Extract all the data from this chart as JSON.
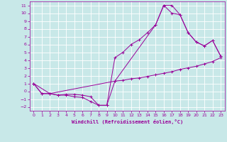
{
  "xlabel": "Windchill (Refroidissement éolien,°C)",
  "bg_color": "#c8e8e8",
  "grid_color": "#ffffff",
  "line_color": "#990099",
  "xlim": [
    -0.5,
    23.5
  ],
  "ylim": [
    -2.5,
    11.5
  ],
  "xticks": [
    0,
    1,
    2,
    3,
    4,
    5,
    6,
    7,
    8,
    9,
    10,
    11,
    12,
    13,
    14,
    15,
    16,
    17,
    18,
    19,
    20,
    21,
    22,
    23
  ],
  "yticks": [
    -2,
    -1,
    0,
    1,
    2,
    3,
    4,
    5,
    6,
    7,
    8,
    9,
    10,
    11
  ],
  "line1_x": [
    0,
    1,
    2,
    3,
    4,
    5,
    6,
    7,
    8,
    9,
    10,
    11,
    12,
    13,
    14,
    15,
    16,
    17,
    18,
    19,
    20,
    21,
    22,
    23
  ],
  "line1_y": [
    1.0,
    -0.3,
    -0.3,
    -0.5,
    -0.4,
    -0.4,
    -0.5,
    -0.7,
    -1.8,
    -1.8,
    1.3,
    1.4,
    1.6,
    1.7,
    1.9,
    2.1,
    2.3,
    2.5,
    2.8,
    3.0,
    3.2,
    3.5,
    3.8,
    4.3
  ],
  "line2_x": [
    0,
    1,
    2,
    3,
    4,
    5,
    6,
    7,
    8,
    9,
    10,
    11,
    12,
    13,
    14,
    15,
    16,
    17,
    18,
    19,
    20,
    21,
    22,
    23
  ],
  "line2_y": [
    1.0,
    -0.3,
    -0.3,
    -0.5,
    -0.5,
    -0.7,
    -0.8,
    -1.3,
    -1.8,
    -1.8,
    4.3,
    5.0,
    6.0,
    6.6,
    7.5,
    8.5,
    11.0,
    11.0,
    9.8,
    7.5,
    6.3,
    5.8,
    6.5,
    4.5
  ],
  "line3_x": [
    0,
    2,
    10,
    15,
    16,
    17,
    18,
    19,
    20,
    21,
    22,
    23
  ],
  "line3_y": [
    1.0,
    -0.3,
    1.3,
    8.5,
    11.0,
    10.0,
    9.8,
    7.5,
    6.3,
    5.8,
    6.5,
    4.5
  ]
}
